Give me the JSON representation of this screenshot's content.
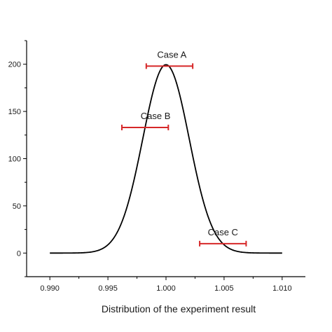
{
  "chart_data": {
    "type": "line",
    "title": "",
    "xlabel": "Distribution of the experiment result",
    "ylabel": "",
    "xlim": [
      0.988,
      1.012
    ],
    "ylim": [
      -25,
      225
    ],
    "x_ticks": [
      0.99,
      0.995,
      1.0,
      1.005,
      1.01
    ],
    "x_tick_labels": [
      "0.990",
      "0.995",
      "1.000",
      "1.005",
      "1.010"
    ],
    "y_ticks": [
      0,
      50,
      100,
      150,
      200
    ],
    "y_tick_labels": [
      "0",
      "50",
      "100",
      "150",
      "200"
    ],
    "grid": false,
    "series": [
      {
        "curve": "gaussian",
        "mean": 1.0,
        "std": 0.002,
        "peak": 199.5,
        "x_range": [
          0.99,
          1.01
        ],
        "color": "#000000"
      }
    ],
    "error_bars": [
      {
        "label": "Case A",
        "center": 1.0005,
        "xmin": 0.9983,
        "xmax": 1.0023,
        "y": 198,
        "color": "#d62728"
      },
      {
        "label": "Case B",
        "center": 0.9991,
        "xmin": 0.9962,
        "xmax": 1.0002,
        "y": 133,
        "color": "#d62728"
      },
      {
        "label": "Case C",
        "center": 1.0049,
        "xmin": 1.0029,
        "xmax": 1.0069,
        "y": 10,
        "color": "#d62728"
      }
    ]
  }
}
